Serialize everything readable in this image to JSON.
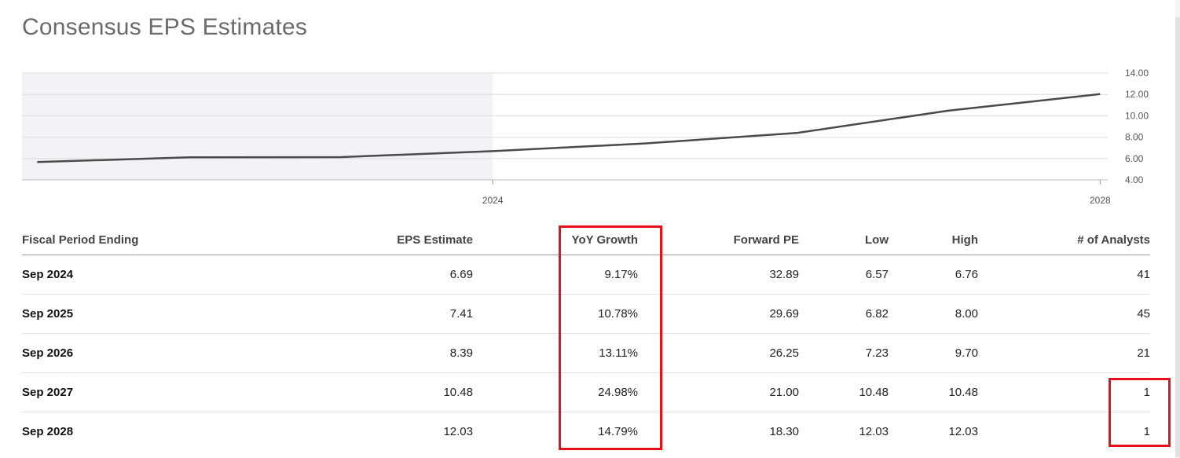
{
  "title": "Consensus EPS Estimates",
  "colors": {
    "line": "#4a4a4a",
    "history_shade": "#f2f3f7",
    "grid": "#dcdcdc",
    "highlight": "#e8101a"
  },
  "chart_data": {
    "type": "line",
    "x_ticks": [
      "2024",
      "2028"
    ],
    "y_ticks": [
      "14.00",
      "12.00",
      "10.00",
      "8.00",
      "6.00",
      "4.00"
    ],
    "ylim": [
      4,
      14
    ],
    "grid": true,
    "shaded_region": "historical (before 2024)",
    "series": [
      {
        "x": [
          2021.0,
          2022.0,
          2023.0,
          2024.0,
          2025.0,
          2026.0,
          2027.0,
          2028.0
        ],
        "values": [
          5.67,
          6.11,
          6.13,
          6.69,
          7.41,
          8.39,
          10.48,
          12.03
        ]
      }
    ],
    "xlim": [
      2020.9,
      2028.05
    ]
  },
  "table": {
    "columns": [
      "Fiscal Period Ending",
      "EPS Estimate",
      "YoY Growth",
      "Forward PE",
      "Low",
      "High",
      "# of Analysts"
    ],
    "rows": [
      [
        "Sep 2024",
        "6.69",
        "9.17%",
        "32.89",
        "6.57",
        "6.76",
        "41"
      ],
      [
        "Sep 2025",
        "7.41",
        "10.78%",
        "29.69",
        "6.82",
        "8.00",
        "45"
      ],
      [
        "Sep 2026",
        "8.39",
        "13.11%",
        "26.25",
        "7.23",
        "9.70",
        "21"
      ],
      [
        "Sep 2027",
        "10.48",
        "24.98%",
        "21.00",
        "10.48",
        "10.48",
        "1"
      ],
      [
        "Sep 2028",
        "12.03",
        "14.79%",
        "18.30",
        "12.03",
        "12.03",
        "1"
      ]
    ]
  }
}
